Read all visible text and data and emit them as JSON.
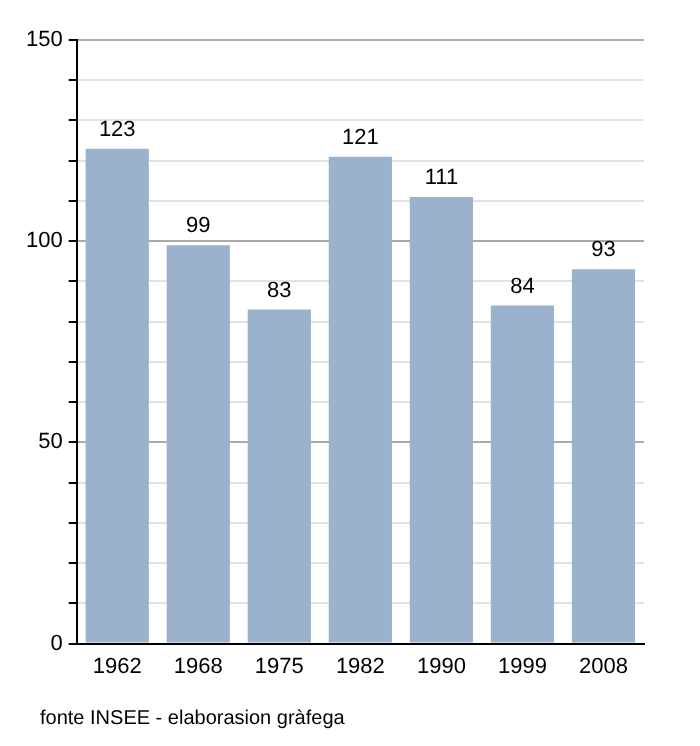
{
  "chart_data": {
    "type": "bar",
    "categories": [
      "1962",
      "1968",
      "1975",
      "1982",
      "1990",
      "1999",
      "2008"
    ],
    "values": [
      123,
      99,
      83,
      121,
      111,
      84,
      93
    ],
    "color": "#9ab2cb",
    "data_labels": true,
    "ylim": [
      0,
      150
    ],
    "yticks": [
      0,
      {
        "value": 10,
        "label": null
      },
      {
        "value": 20,
        "label": null
      },
      {
        "value": 30,
        "label": null
      },
      {
        "value": 40,
        "label": null
      },
      50,
      {
        "value": 60,
        "label": null
      },
      {
        "value": 70,
        "label": null
      },
      {
        "value": 80,
        "label": null
      },
      {
        "value": 90,
        "label": null
      },
      100,
      {
        "value": 110,
        "label": null
      },
      {
        "value": 120,
        "label": null
      },
      {
        "value": 130,
        "label": null
      },
      {
        "value": 140,
        "label": null
      },
      150
    ],
    "grid": "y",
    "legend": false,
    "annotations": [
      "fonte INSEE - elaborasion gràfega"
    ]
  }
}
